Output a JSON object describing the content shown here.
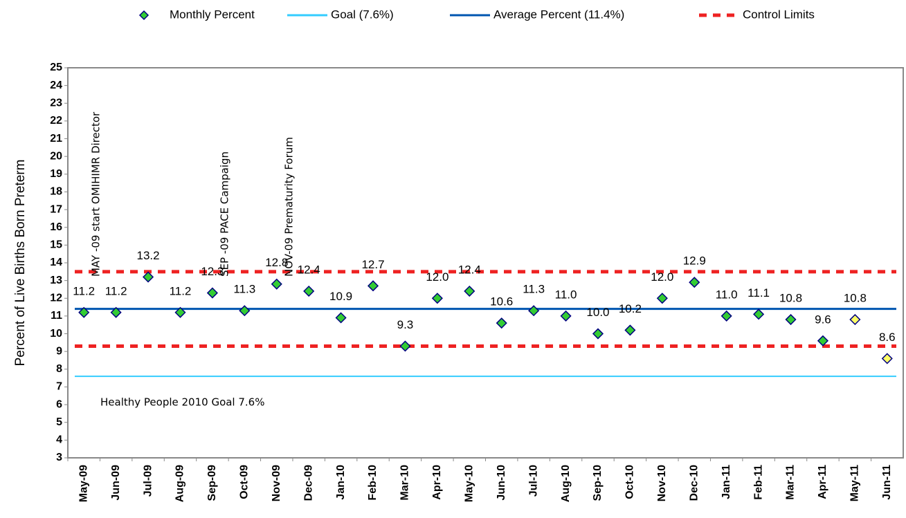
{
  "chart_data": {
    "type": "control",
    "y_label": "Percent of Live Births Born Preterm",
    "categories": [
      "May-09",
      "Jun-09",
      "Jul-09",
      "Aug-09",
      "Sep-09",
      "Oct-09",
      "Nov-09",
      "Dec-09",
      "Jan-10",
      "Feb-10",
      "Mar-10",
      "Apr-10",
      "May-10",
      "Jun-10",
      "Jul-10",
      "Aug-10",
      "Sep-10",
      "Oct-10",
      "Nov-10",
      "Dec-10",
      "Jan-11",
      "Feb-11",
      "Mar-11",
      "Apr-11",
      "May-11",
      "Jun-11"
    ],
    "series": [
      {
        "name": "Monthly Percent",
        "style": "marker",
        "color": "#33cc33",
        "edge_color": "#000080",
        "values": [
          11.2,
          11.2,
          13.2,
          11.2,
          12.3,
          11.3,
          12.8,
          12.4,
          10.9,
          12.7,
          9.3,
          12.0,
          12.4,
          10.6,
          11.3,
          11.0,
          10.0,
          10.2,
          12.0,
          12.9,
          11.0,
          11.1,
          10.8,
          9.6,
          10.8,
          8.6
        ],
        "value_labels": [
          "11.2",
          "11.2",
          "13.2",
          "11.2",
          "12.3",
          "11.3",
          "12.8",
          "12.4",
          "10.9",
          "12.7",
          "9.3",
          "12.0",
          "12.4",
          "10.6",
          "11.3",
          "11.0",
          "10.0",
          "10.2",
          "12.0",
          "12.9",
          "11.0",
          "11.1",
          "10.8",
          "9.6",
          "10.8",
          "8.6"
        ],
        "point_colors": [
          "#33cc33",
          "#33cc33",
          "#33cc33",
          "#33cc33",
          "#33cc33",
          "#33cc33",
          "#33cc33",
          "#33cc33",
          "#33cc33",
          "#33cc33",
          "#33cc33",
          "#33cc33",
          "#33cc33",
          "#33cc33",
          "#33cc33",
          "#33cc33",
          "#33cc33",
          "#33cc33",
          "#33cc33",
          "#33cc33",
          "#33cc33",
          "#33cc33",
          "#33cc33",
          "#33cc33",
          "#ffff66",
          "#ffff66"
        ]
      },
      {
        "name": "Goal (7.6%)",
        "style": "line",
        "color": "#33ccff",
        "level": 7.6
      },
      {
        "name": "Average Percent (11.4%)",
        "style": "line",
        "color": "#0055b0",
        "level": 11.4
      },
      {
        "name": "Control Limits",
        "style": "dashed",
        "color": "#ee2222",
        "levels": [
          13.5,
          9.3
        ]
      }
    ],
    "annotations": [
      "MAY -09 start OMIHIMR Director",
      "SEP -09 PACE Campaign",
      "NOV-09 Prematurity Forum",
      "Healthy People 2010 Goal 7.6%"
    ],
    "ylim": [
      3,
      25
    ],
    "yticks": [
      3,
      4,
      5,
      6,
      7,
      8,
      9,
      10,
      11,
      12,
      13,
      14,
      15,
      16,
      17,
      18,
      19,
      20,
      21,
      22,
      23,
      24,
      25
    ]
  }
}
